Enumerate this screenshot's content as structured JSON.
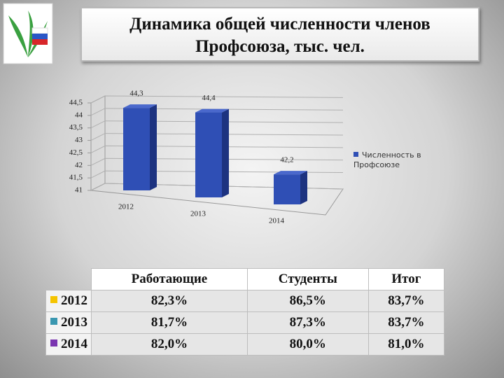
{
  "title_lines": [
    "Динамика общей численности членов",
    "Профсоюза, тыс. чел."
  ],
  "chart_data": {
    "type": "bar",
    "categories": [
      "2012",
      "2013",
      "2014"
    ],
    "series": [
      {
        "name": "Численность в Профсоюзе",
        "color": "#2f4fb5",
        "values": [
          44.3,
          44.4,
          42.2
        ],
        "value_labels": [
          "44,3",
          "44,4",
          "42,2"
        ]
      }
    ],
    "ylim": [
      41,
      44.5
    ],
    "yticks": [
      41,
      {
        "value": 41.5,
        "label": "41,5"
      },
      42,
      {
        "value": 42.5,
        "label": "42,5"
      },
      43,
      {
        "value": 43.5,
        "label": "43,5"
      },
      44,
      {
        "value": 44.5,
        "label": "44,5"
      }
    ],
    "grid": true,
    "legend": "right"
  },
  "table": {
    "headers": [
      "Работающие",
      "Студенты",
      "Итог"
    ],
    "row_colors": [
      "#f5c400",
      "#3a97b0",
      "#7a35b0"
    ],
    "rows": [
      [
        "2012",
        "82,3%",
        "86,5%",
        "83,7%"
      ],
      [
        "2013",
        "81,7%",
        "87,3%",
        "83,7%"
      ],
      [
        "2014",
        "82,0%",
        "80,0%",
        "81,0%"
      ]
    ]
  }
}
